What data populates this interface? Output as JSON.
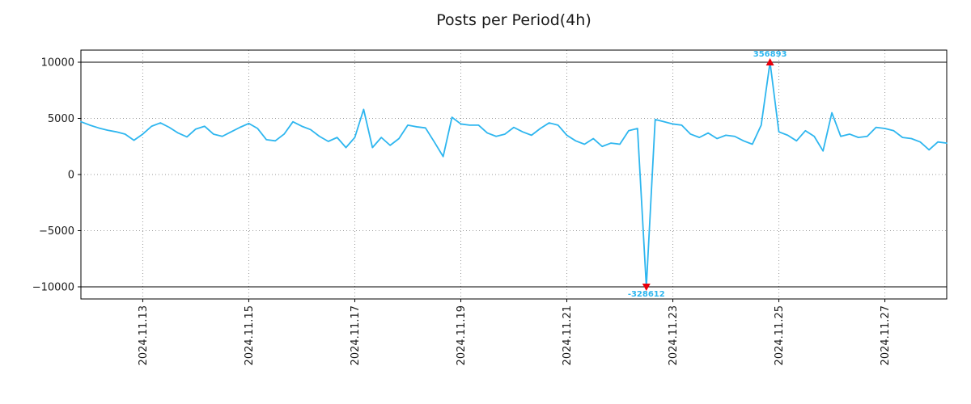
{
  "chart_data": {
    "type": "line",
    "title": "Posts per Period(4h)",
    "xlabel": "",
    "ylabel": "",
    "period_hours": 4,
    "x_tick_labels": [
      "2024.11.13",
      "2024.11.15",
      "2024.11.17",
      "2024.11.19",
      "2024.11.21",
      "2024.11.23",
      "2024.11.25",
      "2024.11.27"
    ],
    "x_tick_positions": [
      7,
      19,
      31,
      43,
      55,
      67,
      79,
      91
    ],
    "y_ticks": [
      10000,
      5000,
      0,
      -5000,
      -10000
    ],
    "y_tick_labels": [
      "10000",
      "5000",
      "0",
      "−5000",
      "−10000"
    ],
    "xlim": [
      0,
      98
    ],
    "ylim": [
      -11080,
      11080
    ],
    "clip_value": 10000,
    "grid": true,
    "grid_color": "#999999",
    "line_color": "#2eb6ef",
    "marker_color": "#e8000b",
    "series": [
      {
        "name": "posts",
        "color": "#2eb6ef",
        "values": [
          4700,
          4400,
          4150,
          3950,
          3800,
          3600,
          3050,
          3600,
          4300,
          4600,
          4200,
          3700,
          3350,
          4050,
          4300,
          3600,
          3400,
          3800,
          4200,
          4550,
          4100,
          3100,
          3000,
          3600,
          4700,
          4300,
          4000,
          3400,
          2950,
          3300,
          2400,
          3300,
          5800,
          2400,
          3300,
          2600,
          3200,
          4400,
          4250,
          4150,
          2900,
          1600,
          5100,
          4500,
          4400,
          4400,
          3700,
          3400,
          3600,
          4200,
          3800,
          3500,
          4100,
          4600,
          4400,
          3500,
          3000,
          2700,
          3200,
          2500,
          2800,
          2700,
          3900,
          4100,
          -328612,
          4900,
          4700,
          4500,
          4400,
          3600,
          3300,
          3700,
          3200,
          3500,
          3400,
          3000,
          2700,
          4400,
          356893,
          3800,
          3500,
          3000,
          3900,
          3400,
          2100,
          5500,
          3400,
          3600,
          3300,
          3400,
          4200,
          4100,
          3900,
          3300,
          3200,
          2900,
          2200,
          2900,
          2800
        ]
      }
    ],
    "annotations": [
      {
        "index": 78,
        "value": 356893,
        "label": "356893",
        "position": "top"
      },
      {
        "index": 64,
        "value": -328612,
        "label": "-328612",
        "position": "bottom"
      }
    ]
  }
}
